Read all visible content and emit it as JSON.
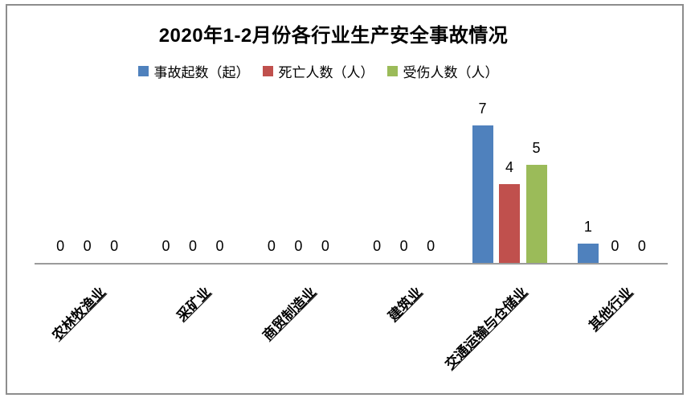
{
  "title": "2020年1-2月份各行业生产安全事故情况",
  "chart_data": {
    "type": "bar",
    "title": "2020年1-2月份各行业生产安全事故情况",
    "categories": [
      "农林牧渔业",
      "采矿业",
      "商贸制造业",
      "建筑业",
      "交通运输与仓储业",
      "其他行业"
    ],
    "series": [
      {
        "name": "事故起数（起）",
        "color": "#4f81bd",
        "values": [
          0,
          0,
          0,
          0,
          7,
          1
        ]
      },
      {
        "name": "死亡人数（人）",
        "color": "#c0504d",
        "values": [
          0,
          0,
          0,
          0,
          4,
          0
        ]
      },
      {
        "name": "受伤人数（人）",
        "color": "#9bbb59",
        "values": [
          0,
          0,
          0,
          0,
          5,
          0
        ]
      }
    ],
    "xlabel": "",
    "ylabel": "",
    "ylim": [
      0,
      7
    ],
    "data_labels": true,
    "legend_position": "top",
    "gridlines": false,
    "axis_color": "#9b9b9b"
  }
}
